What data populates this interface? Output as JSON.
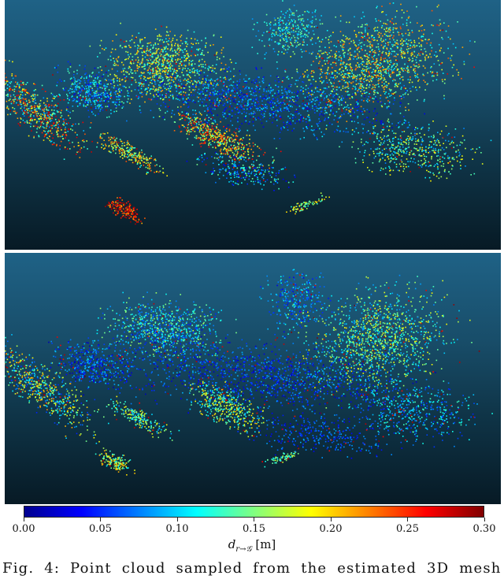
{
  "figure": {
    "panels": [
      {
        "id": "top"
      },
      {
        "id": "bottom"
      }
    ],
    "colorbar": {
      "colormap": "jet",
      "colors": [
        "#00008f",
        "#0000ff",
        "#0080ff",
        "#00ffff",
        "#80ff80",
        "#ffff00",
        "#ff8000",
        "#ff0000",
        "#800000"
      ],
      "min": 0.0,
      "max": 0.3,
      "ticks": [
        "0.00",
        "0.05",
        "0.10",
        "0.15",
        "0.20",
        "0.25",
        "0.30"
      ],
      "label_main": "d",
      "label_sub": "r→𝒢",
      "label_unit": "[m]"
    },
    "caption": "Fig. 4: Point cloud sampled from the estimated 3D mesh"
  }
}
